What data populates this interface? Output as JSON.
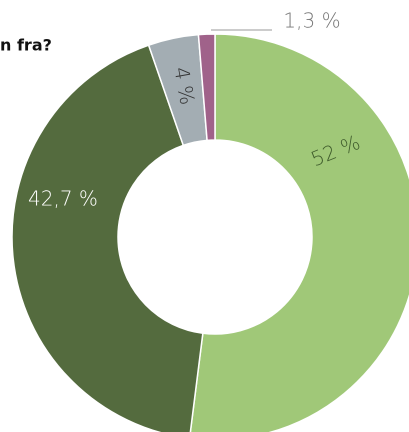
{
  "chart_data": {
    "type": "donut",
    "title": "n fra?",
    "categories": [
      null,
      null,
      null,
      null
    ],
    "values": [
      52,
      42.7,
      4,
      1.3
    ],
    "value_labels": [
      "52 %",
      "42,7 %",
      "4 %",
      "1,3 %"
    ],
    "colors": [
      "#a0c878",
      "#546b3e",
      "#a3adb3",
      "#a0628a"
    ]
  }
}
